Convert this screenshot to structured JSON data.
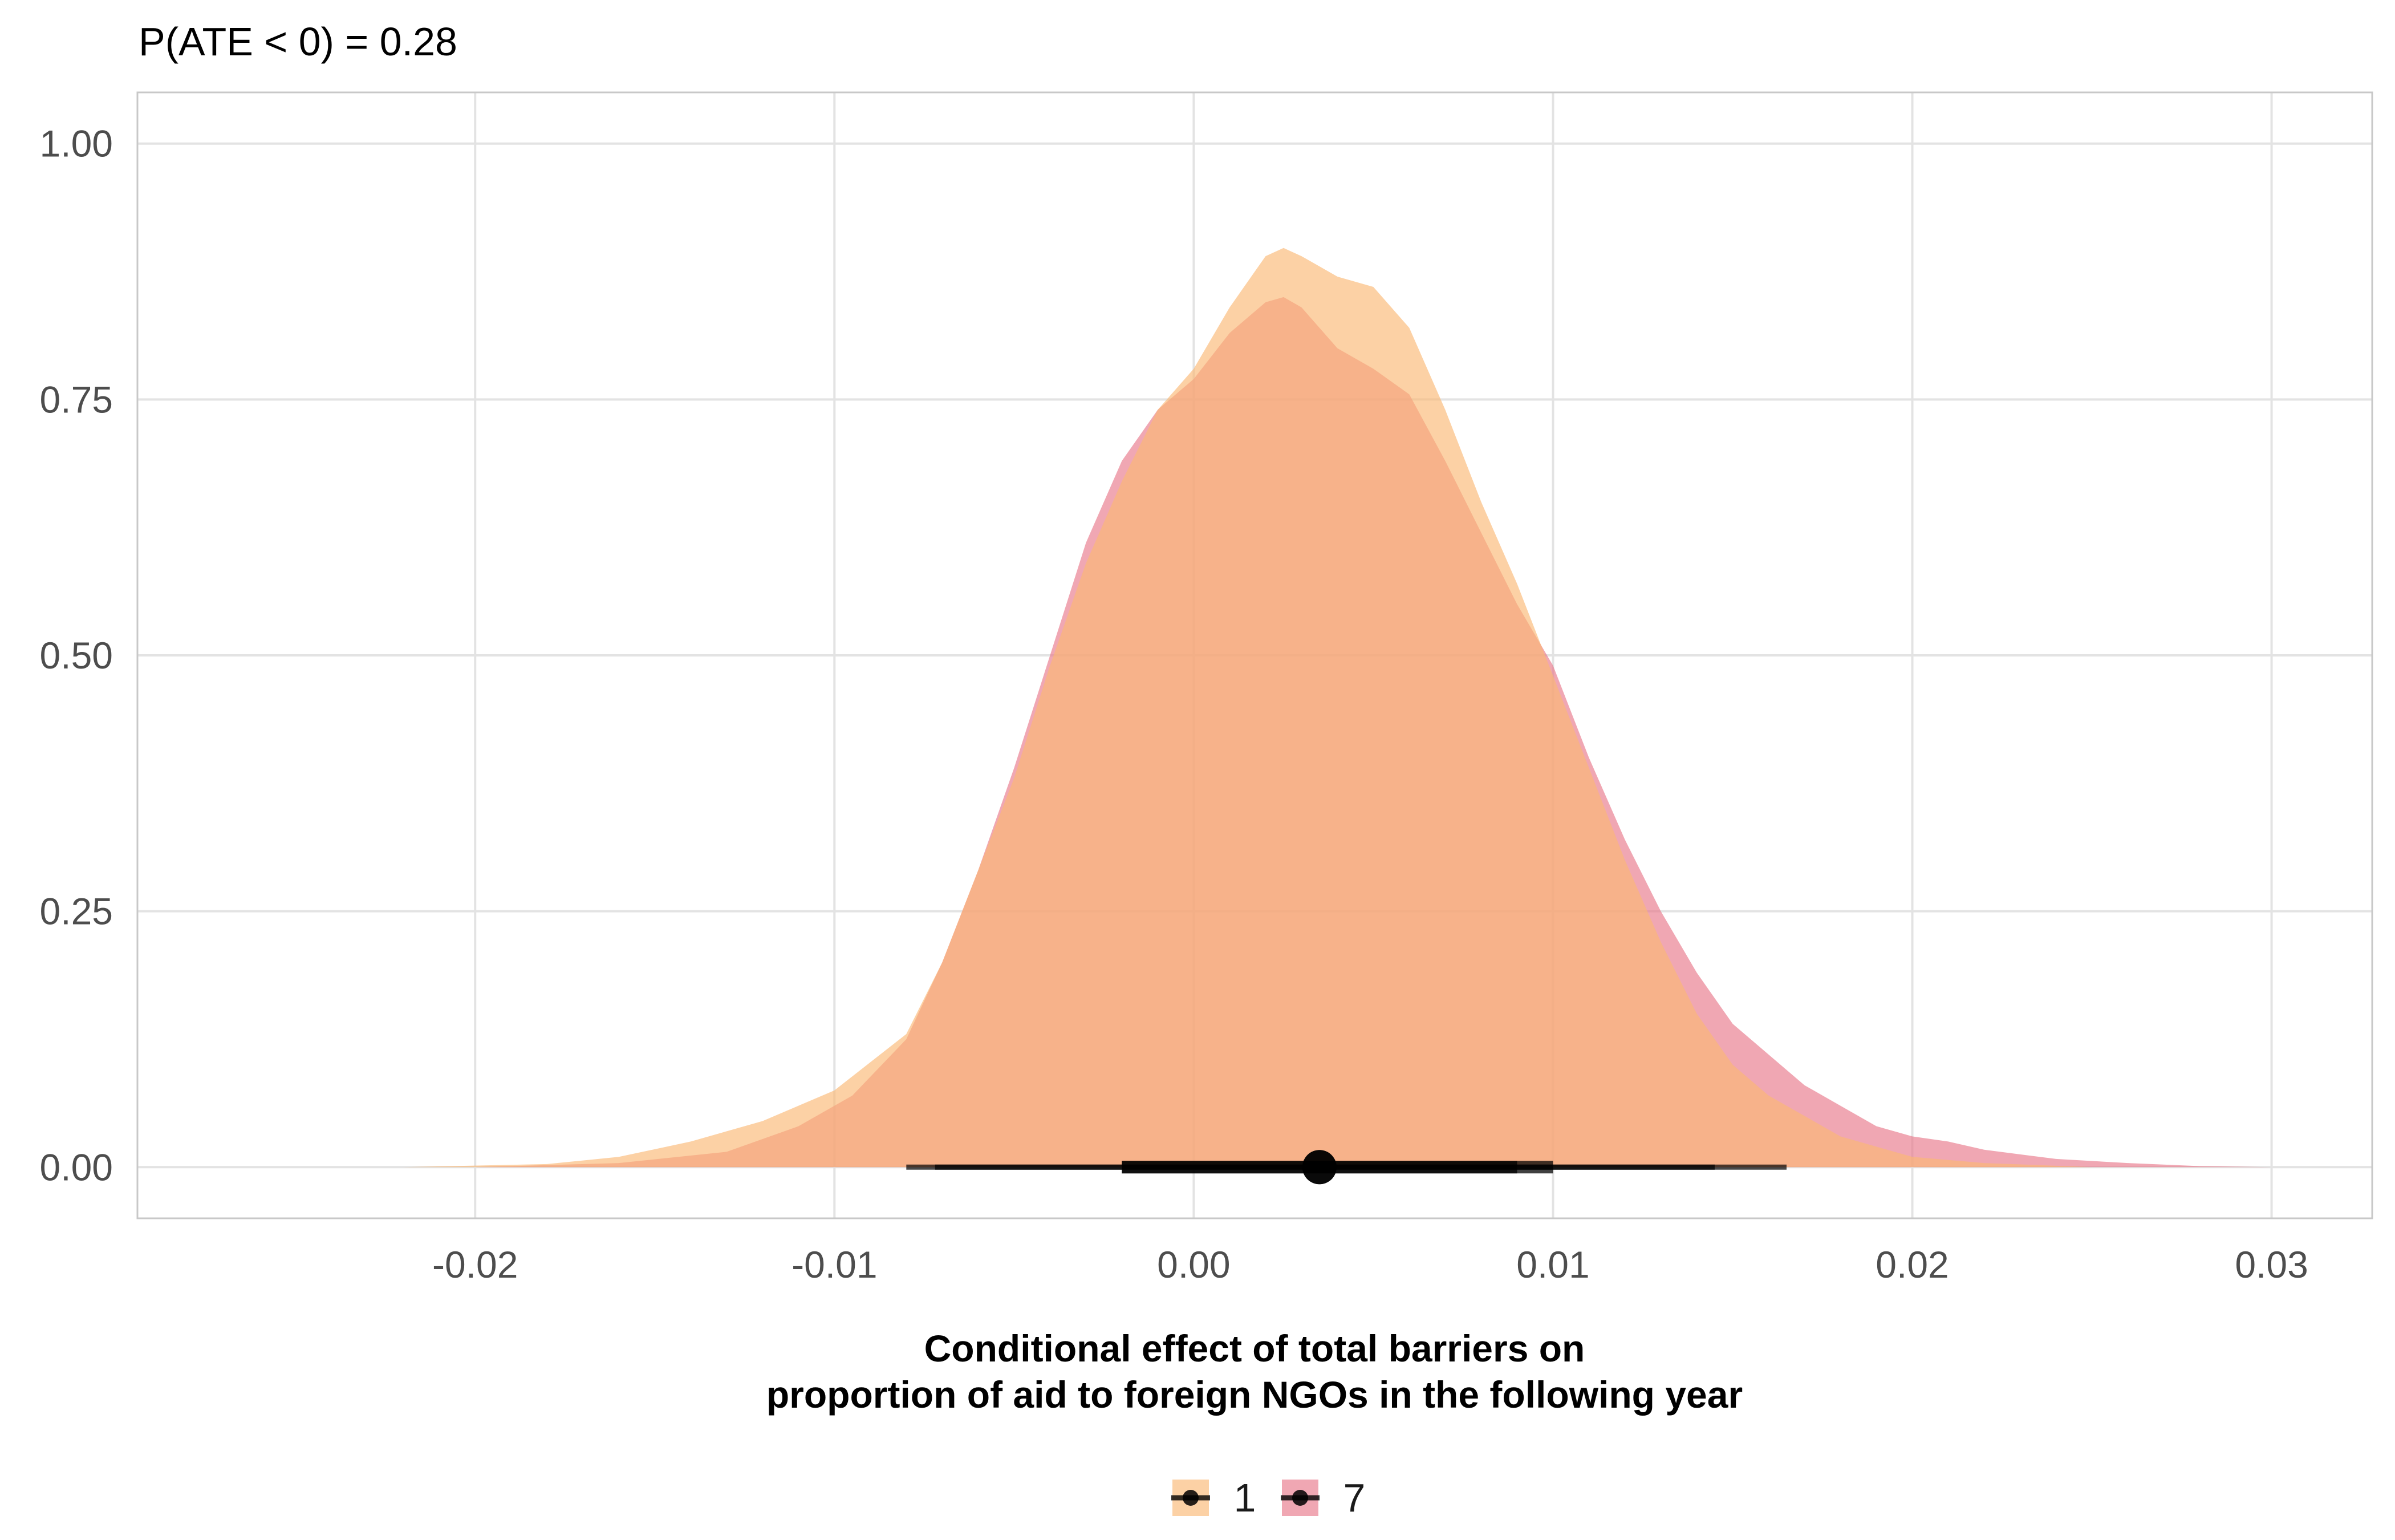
{
  "chart_data": {
    "type": "area",
    "subtitle": "P(ATE < 0) = 0.28",
    "xlabel_lines": [
      "Conditional effect of total barriers on",
      "proportion of aid to foreign NGOs in the following year"
    ],
    "ylabel": "",
    "xlim": [
      -0.0294,
      0.0328
    ],
    "ylim": [
      -0.05,
      1.05
    ],
    "x_ticks": [
      -0.02,
      -0.01,
      0.0,
      0.01,
      0.02,
      0.03
    ],
    "x_tick_labels": [
      "-0.02",
      "-0.01",
      "0.00",
      "0.01",
      "0.02",
      "0.03"
    ],
    "y_ticks": [
      0,
      0.25,
      0.5,
      0.75,
      1.0
    ],
    "y_tick_labels": [
      "0.00",
      "0.25",
      "0.50",
      "0.75",
      "1.00"
    ],
    "grid": true,
    "legend_position": "bottom",
    "series": [
      {
        "name": "7",
        "color": "#E8788A",
        "x": [
          -0.02,
          -0.016,
          -0.013,
          -0.011,
          -0.0095,
          -0.008,
          -0.007,
          -0.006,
          -0.005,
          -0.004,
          -0.003,
          -0.002,
          -0.001,
          0.0,
          0.001,
          0.002,
          0.0025,
          0.003,
          0.004,
          0.005,
          0.006,
          0.007,
          0.008,
          0.009,
          0.01,
          0.011,
          0.012,
          0.013,
          0.014,
          0.015,
          0.016,
          0.017,
          0.018,
          0.019,
          0.02,
          0.021,
          0.022,
          0.024,
          0.026,
          0.028,
          0.03
        ],
        "density": [
          0.0,
          0.004,
          0.015,
          0.04,
          0.07,
          0.125,
          0.2,
          0.29,
          0.39,
          0.5,
          0.61,
          0.69,
          0.74,
          0.77,
          0.815,
          0.845,
          0.85,
          0.84,
          0.8,
          0.78,
          0.755,
          0.69,
          0.62,
          0.55,
          0.49,
          0.4,
          0.32,
          0.25,
          0.19,
          0.14,
          0.11,
          0.08,
          0.06,
          0.04,
          0.03,
          0.025,
          0.017,
          0.008,
          0.004,
          0.001,
          0.0
        ],
        "interval": {
          "point": 0.0035,
          "inner": [
            -0.002,
            0.01
          ],
          "outer": [
            -0.008,
            0.0165
          ]
        }
      },
      {
        "name": "1",
        "color": "#FAB875",
        "x": [
          -0.022,
          -0.018,
          -0.016,
          -0.014,
          -0.012,
          -0.01,
          -0.008,
          -0.007,
          -0.006,
          -0.005,
          -0.004,
          -0.003,
          -0.002,
          -0.001,
          0.0,
          0.001,
          0.002,
          0.0025,
          0.003,
          0.004,
          0.005,
          0.006,
          0.007,
          0.008,
          0.009,
          0.01,
          0.011,
          0.012,
          0.013,
          0.014,
          0.015,
          0.016,
          0.017,
          0.018,
          0.019,
          0.02,
          0.022,
          0.025
        ],
        "density": [
          0.0,
          0.003,
          0.01,
          0.025,
          0.045,
          0.075,
          0.13,
          0.2,
          0.29,
          0.38,
          0.49,
          0.59,
          0.67,
          0.74,
          0.78,
          0.84,
          0.89,
          0.898,
          0.89,
          0.87,
          0.86,
          0.82,
          0.74,
          0.65,
          0.57,
          0.48,
          0.39,
          0.3,
          0.22,
          0.15,
          0.1,
          0.07,
          0.05,
          0.03,
          0.02,
          0.01,
          0.004,
          0.0
        ],
        "interval": {
          "point": 0.0035,
          "inner": [
            -0.002,
            0.009
          ],
          "outer": [
            -0.0072,
            0.0145
          ]
        }
      }
    ]
  },
  "legend": {
    "items": [
      {
        "label": "1",
        "color": "#FAB875"
      },
      {
        "label": "7",
        "color": "#E8788A"
      }
    ]
  }
}
